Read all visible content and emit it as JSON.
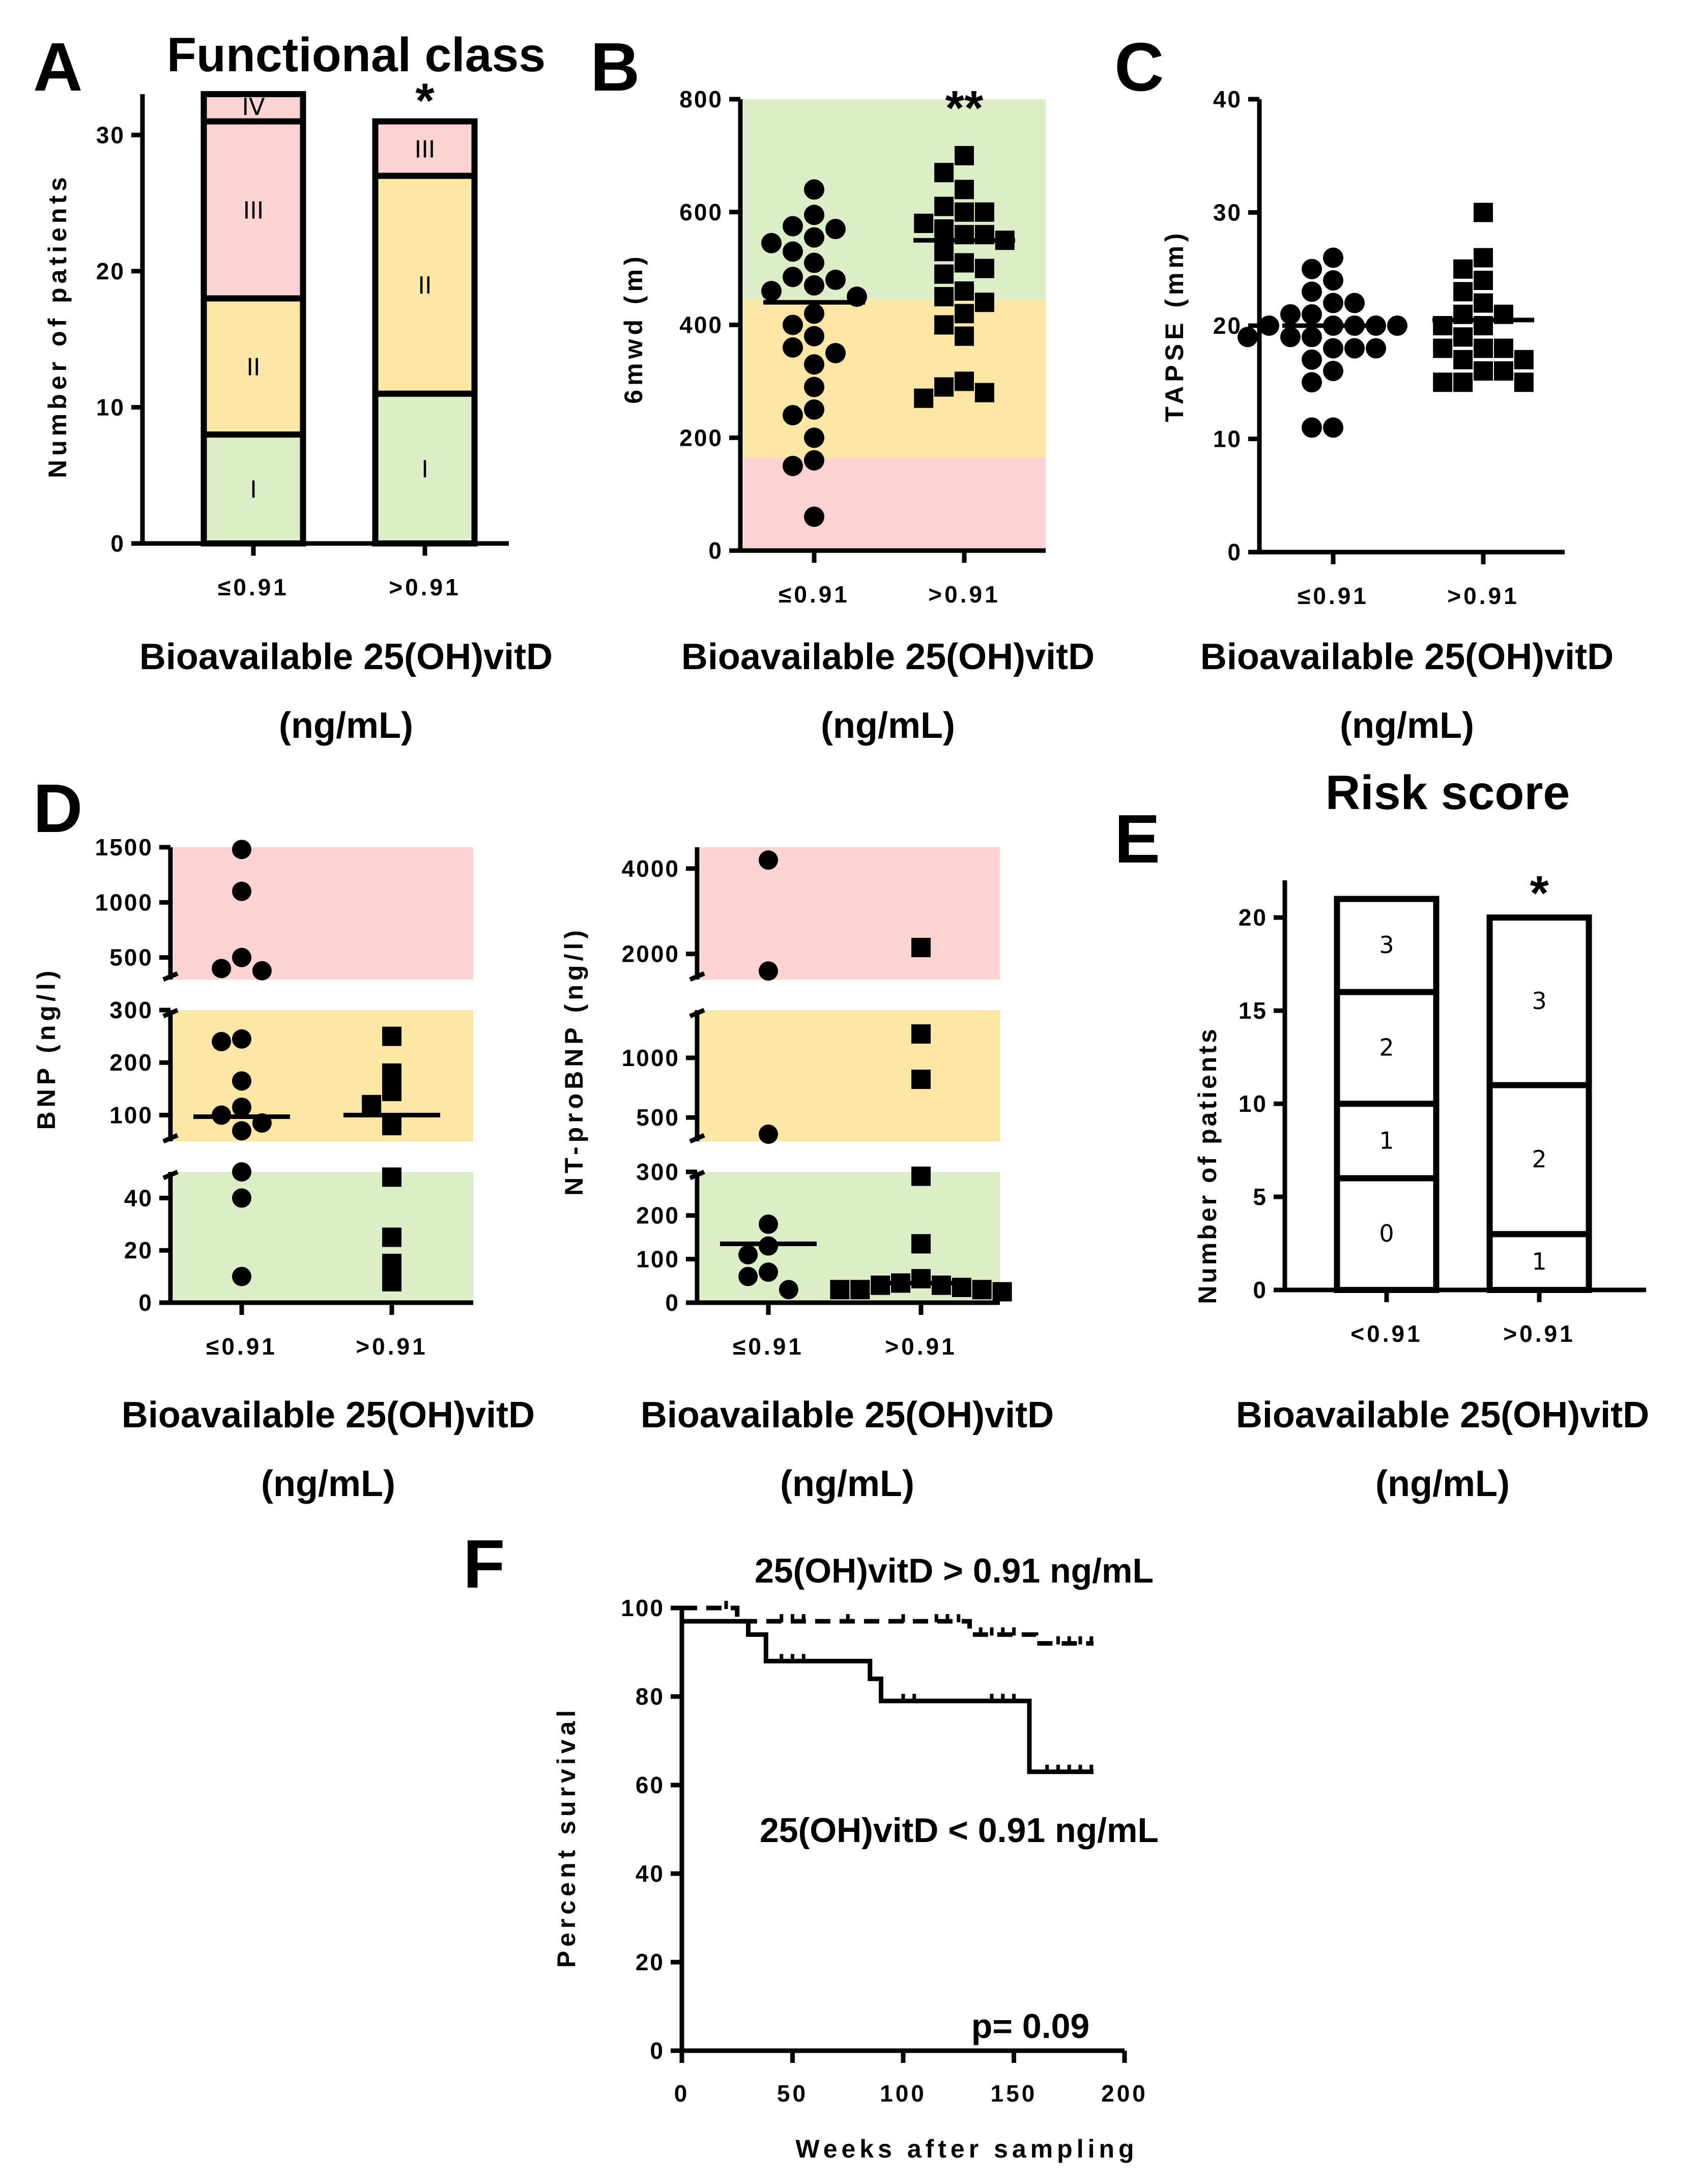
{
  "colors": {
    "green": "#dcedc8",
    "yellow": "#fbe6a5",
    "red": "#fcd3d3",
    "ink": "#000000"
  },
  "common_xlabel_line1": "Bioavailable 25(OH)vitD",
  "common_xlabel_line2": "(ng/mL)",
  "chart_data": [
    {
      "id": "A",
      "type": "bar",
      "title": "Functional class",
      "ylabel": "Number of patients",
      "ylim": [
        0,
        33
      ],
      "yticks": [
        "0",
        "10",
        "20",
        "30"
      ],
      "categories": [
        "≤0.91",
        ">0.91"
      ],
      "series": [
        {
          "name": "I",
          "values": [
            8,
            11
          ]
        },
        {
          "name": "II",
          "values": [
            10,
            16
          ]
        },
        {
          "name": "III",
          "values": [
            13,
            4
          ]
        },
        {
          "name": "IV",
          "values": [
            2,
            0
          ]
        }
      ],
      "significance": [
        "",
        "*"
      ]
    },
    {
      "id": "B",
      "type": "scatter",
      "ylabel": "6mwd (m)",
      "ylim": [
        0,
        800
      ],
      "yticks": [
        "0",
        "200",
        "400",
        "600",
        "800"
      ],
      "categories": [
        "≤0.91",
        ">0.91"
      ],
      "bands": [
        [
          0,
          165
        ],
        [
          165,
          445
        ],
        [
          445,
          800
        ]
      ],
      "medians": [
        440,
        550
      ],
      "points": [
        [
          640,
          595,
          575,
          555,
          570,
          545,
          530,
          510,
          480,
          485,
          470,
          460,
          450,
          420,
          400,
          380,
          360,
          350,
          330,
          290,
          250,
          240,
          200,
          160,
          150,
          60
        ],
        [
          700,
          670,
          640,
          610,
          600,
          600,
          580,
          570,
          560,
          560,
          550,
          530,
          510,
          500,
          490,
          460,
          450,
          440,
          420,
          400,
          380,
          300,
          290,
          280,
          270
        ]
      ],
      "significance": [
        "",
        "**"
      ]
    },
    {
      "id": "C",
      "type": "scatter",
      "ylabel": "TAPSE (mm)",
      "ylim": [
        0,
        40
      ],
      "yticks": [
        "0",
        "10",
        "20",
        "30",
        "40"
      ],
      "categories": [
        "≤0.91",
        ">0.91"
      ],
      "medians": [
        20,
        20.5
      ],
      "points": [
        [
          26,
          25,
          24,
          23,
          22,
          22,
          21,
          21,
          20,
          20,
          20,
          20,
          20,
          19,
          19,
          19,
          18,
          18,
          18,
          17,
          16,
          15,
          11,
          11
        ],
        [
          30,
          26,
          25,
          24,
          23,
          22,
          21,
          21,
          20,
          20,
          19,
          18,
          18,
          18,
          17,
          17,
          16,
          16,
          15,
          15,
          15
        ]
      ]
    },
    {
      "id": "D-BNP",
      "type": "scatter",
      "ylabel": "BNP (ng/l)",
      "categories": [
        "≤0.91",
        ">0.91"
      ],
      "segments": [
        {
          "range": [
            0,
            50
          ],
          "ticks": [
            "0",
            "20",
            "40"
          ]
        },
        {
          "range": [
            50,
            300
          ],
          "ticks": [
            "100",
            "200",
            "300"
          ]
        },
        {
          "range": [
            300,
            1500
          ],
          "ticks": [
            "500",
            "1000",
            "1500"
          ]
        }
      ],
      "medians": [
        97,
        100
      ],
      "points": [
        [
          1480,
          1100,
          500,
          400,
          380,
          245,
          240,
          165,
          115,
          100,
          85,
          70,
          50,
          40,
          10
        ],
        [
          250,
          180,
          145,
          120,
          80,
          48,
          25,
          15,
          8
        ]
      ]
    },
    {
      "id": "D-NTproBNP",
      "type": "scatter",
      "ylabel": "NT-proBNP (ng/l)",
      "categories": [
        "≤0.91",
        ">0.91"
      ],
      "segments": [
        {
          "range": [
            0,
            300
          ],
          "ticks": [
            "0",
            "100",
            "200",
            "300"
          ]
        },
        {
          "range": [
            300,
            1400
          ],
          "ticks": [
            "500",
            "1000"
          ]
        },
        {
          "range": [
            1400,
            4500
          ],
          "ticks": [
            "2000",
            "4000"
          ]
        }
      ],
      "medians": [
        135,
        45
      ],
      "points": [
        [
          4200,
          1600,
          360,
          180,
          130,
          110,
          70,
          60,
          30
        ],
        [
          2150,
          1200,
          820,
          290,
          135,
          55,
          45,
          40,
          40,
          35,
          30,
          30,
          30,
          25
        ]
      ]
    },
    {
      "id": "E",
      "type": "bar",
      "title": "Risk score",
      "ylabel": "Number of patients",
      "ylim": [
        0,
        22
      ],
      "yticks": [
        "0",
        "5",
        "10",
        "15",
        "20"
      ],
      "categories": [
        "<0.91",
        ">0.91"
      ],
      "series": [
        {
          "name": "0",
          "values": [
            6,
            0
          ]
        },
        {
          "name": "1",
          "values": [
            4,
            3
          ]
        },
        {
          "name": "2",
          "values": [
            6,
            8
          ]
        },
        {
          "name": "3",
          "values": [
            5,
            9
          ]
        }
      ],
      "significance": [
        "",
        "*"
      ]
    },
    {
      "id": "F",
      "type": "line",
      "xlabel": "Weeks after sampling",
      "ylabel": "Percent survival",
      "xlim": [
        0,
        200
      ],
      "ylim": [
        0,
        100
      ],
      "xticks": [
        "0",
        "50",
        "100",
        "150",
        "200"
      ],
      "yticks": [
        "0",
        "20",
        "40",
        "60",
        "80",
        "100"
      ],
      "series": [
        {
          "name": "25(OH)vitD > 0.91 ng/mL",
          "style": "dashed",
          "x": [
            0,
            25,
            25,
            130,
            130,
            160,
            160,
            186
          ],
          "y": [
            100,
            100,
            97,
            97,
            94,
            94,
            92,
            92
          ],
          "censor_x": [
            20,
            45,
            50,
            55,
            75,
            100,
            115,
            120,
            125,
            135,
            140,
            145,
            150,
            170,
            175,
            180,
            185
          ]
        },
        {
          "name": "25(OH)vitD < 0.91 ng/mL",
          "style": "solid",
          "x": [
            0,
            30,
            30,
            38,
            38,
            85,
            85,
            90,
            90,
            157,
            157,
            186
          ],
          "y": [
            97,
            97,
            94,
            94,
            88,
            88,
            84,
            84,
            79,
            79,
            63,
            63
          ],
          "censor_x": [
            45,
            50,
            55,
            100,
            105,
            140,
            145,
            150,
            165,
            170,
            175,
            180,
            185
          ]
        }
      ],
      "label_top": "25(OH)vitD > 0.91 ng/mL",
      "label_bottom": "25(OH)vitD < 0.91 ng/mL",
      "pvalue": "p= 0.09"
    }
  ]
}
